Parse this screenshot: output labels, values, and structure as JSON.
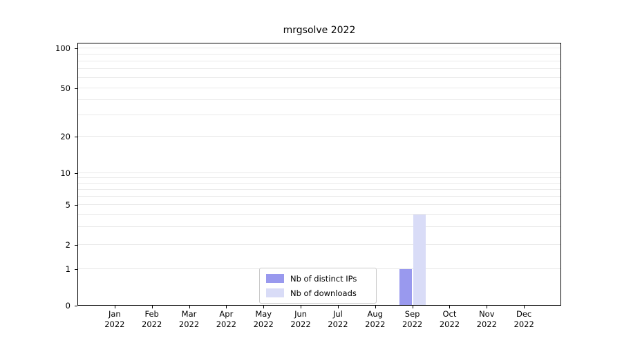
{
  "chart_data": {
    "type": "bar",
    "title": "mrgsolve 2022",
    "xlabel": "",
    "ylabel": "",
    "categories": [
      "Jan",
      "Feb",
      "Mar",
      "Apr",
      "May",
      "Jun",
      "Jul",
      "Aug",
      "Sep",
      "Oct",
      "Nov",
      "Dec"
    ],
    "category_year": "2022",
    "series": [
      {
        "name": "Nb of distinct IPs",
        "color": "#9999ee",
        "values": [
          0,
          0,
          0,
          0,
          0,
          0,
          0,
          0,
          1,
          0,
          0,
          0
        ]
      },
      {
        "name": "Nb of downloads",
        "color": "#d9dcf7",
        "values": [
          0,
          0,
          0,
          0,
          0,
          0,
          0,
          0,
          4,
          0,
          0,
          0
        ]
      }
    ],
    "y_scale": "symlog",
    "ylim": [
      0,
      120
    ],
    "y_ticks": [
      0,
      1,
      2,
      5,
      10,
      20,
      50,
      100
    ],
    "y_gridlines": [
      1,
      2,
      3,
      4,
      5,
      6,
      7,
      8,
      9,
      10,
      20,
      30,
      40,
      50,
      60,
      70,
      80,
      90,
      100
    ],
    "grid": true,
    "legend_position": "bottom-center-inside"
  }
}
